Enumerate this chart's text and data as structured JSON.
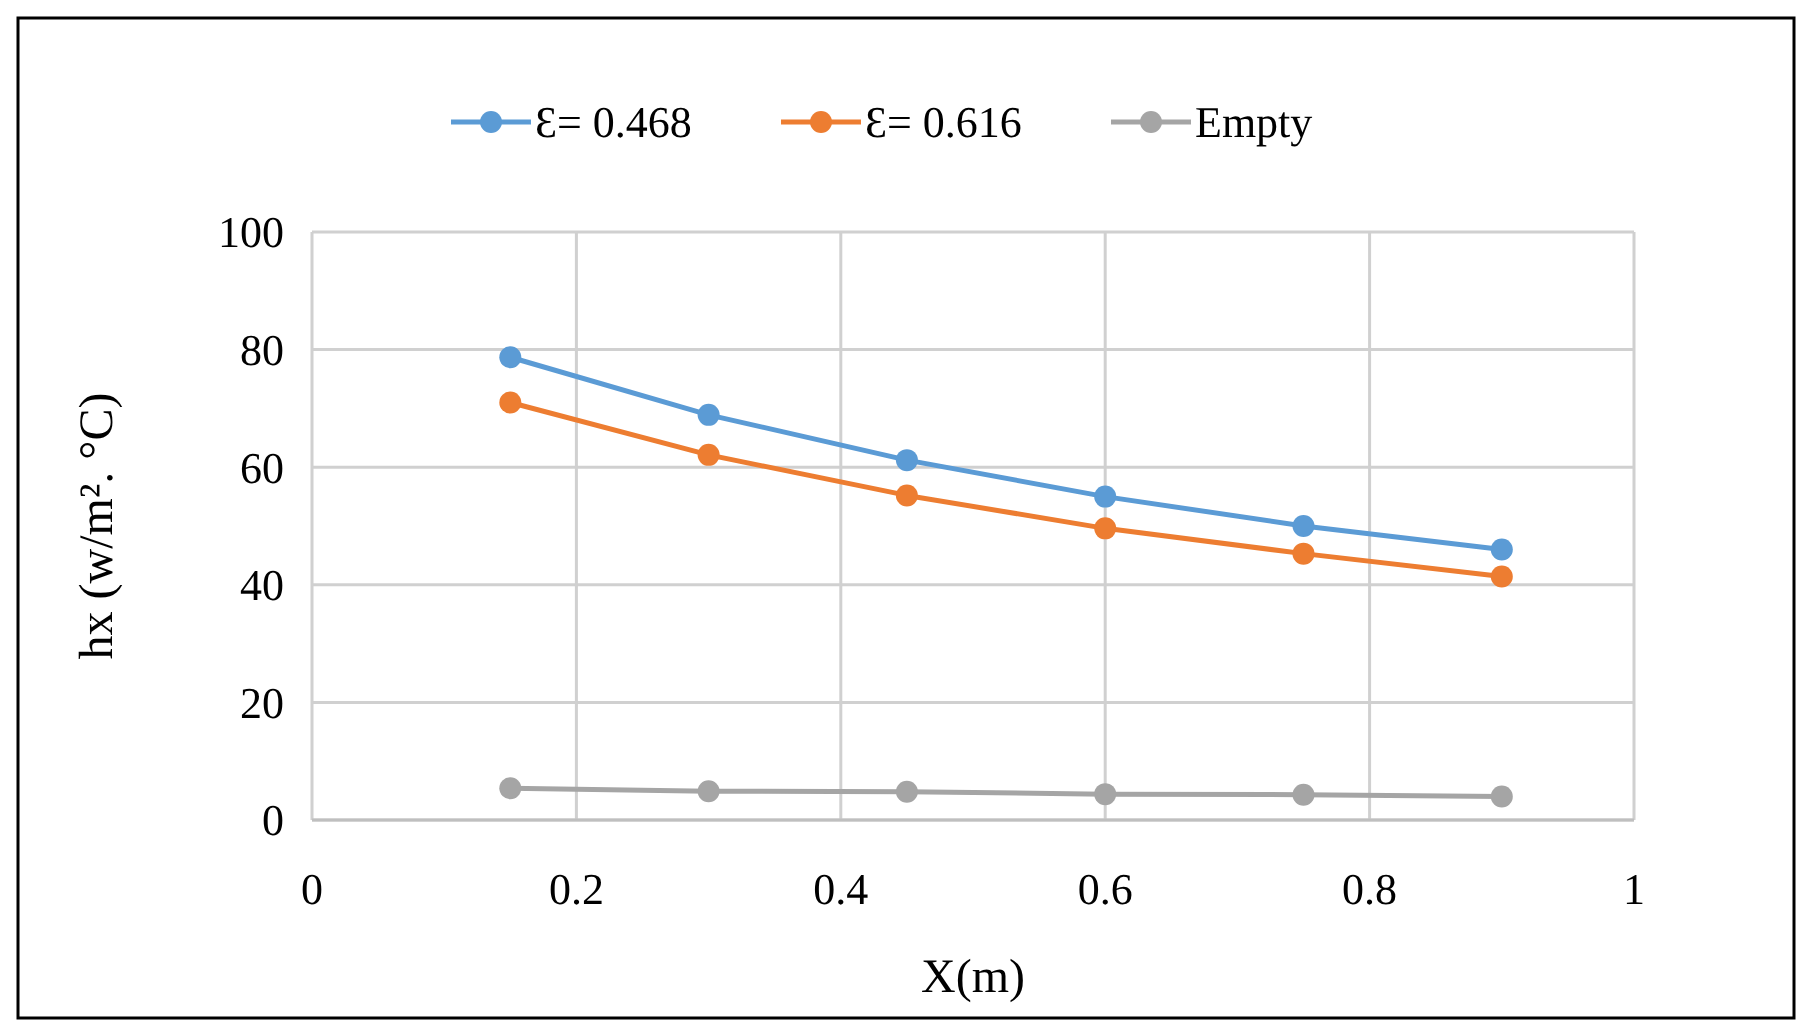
{
  "chart_data": {
    "type": "line",
    "xlabel": "X(m)",
    "ylabel": "hx (w/m². °C)",
    "x": [
      0.15,
      0.3,
      0.45,
      0.6,
      0.75,
      0.9
    ],
    "series": [
      {
        "name": "Ɛ= 0.468",
        "color": "#5b9bd5",
        "values": [
          78.7,
          68.9,
          61.2,
          55,
          50,
          46
        ]
      },
      {
        "name": "Ɛ= 0.616",
        "color": "#ed7d31",
        "values": [
          71,
          62.1,
          55.2,
          49.6,
          45.3,
          41.4
        ]
      },
      {
        "name": "Empty",
        "color": "#a5a5a5",
        "values": [
          5.4,
          4.9,
          4.8,
          4.4,
          4.3,
          4.0
        ]
      }
    ],
    "xlim": [
      0,
      1
    ],
    "xticks": [
      0,
      0.2,
      0.4,
      0.6,
      0.8,
      1
    ],
    "ylim": [
      0,
      100
    ],
    "yticks": [
      0,
      20,
      40,
      60,
      80,
      100
    ],
    "grid": true,
    "legend": "top",
    "marker": "circle",
    "line_style": "solid"
  }
}
